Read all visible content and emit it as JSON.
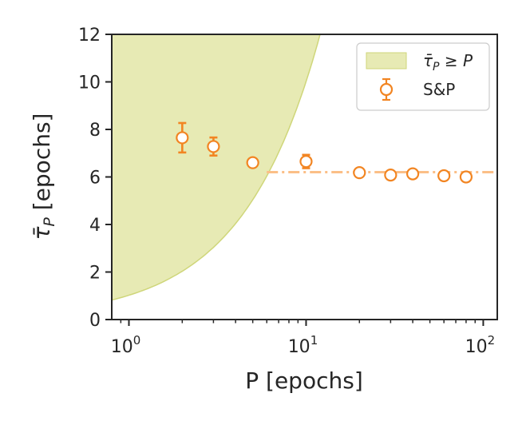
{
  "chart_data": {
    "type": "scatter",
    "title": "",
    "xlabel": "P [epochs]",
    "ylabel_main": "τ̄",
    "ylabel_sub": "P",
    "ylabel_rest": " [epochs]",
    "xscale": "log",
    "xlim": [
      0.8,
      120
    ],
    "ylim": [
      0,
      12
    ],
    "xticks": [
      {
        "value": 1,
        "base": "10",
        "exp": "0"
      },
      {
        "value": 10,
        "base": "10",
        "exp": "1"
      },
      {
        "value": 100,
        "base": "10",
        "exp": "2"
      }
    ],
    "yticks": [
      {
        "value": 0,
        "label": "0"
      },
      {
        "value": 2,
        "label": "2"
      },
      {
        "value": 4,
        "label": "4"
      },
      {
        "value": 6,
        "label": "6"
      },
      {
        "value": 8,
        "label": "8"
      },
      {
        "value": 10,
        "label": "10"
      },
      {
        "value": 12,
        "label": "12"
      }
    ],
    "grid": false,
    "legend": {
      "placement": "top-right",
      "entries": [
        {
          "kind": "region",
          "main": "τ̄",
          "sub": "P",
          "rest": " ≥ ",
          "italic": "P"
        },
        {
          "kind": "marker",
          "label": "S&P"
        }
      ]
    },
    "series": [
      {
        "name": "S&P",
        "points": [
          {
            "x": 2,
            "y": 7.65,
            "err": 0.62
          },
          {
            "x": 3,
            "y": 7.28,
            "err": 0.38
          },
          {
            "x": 5,
            "y": 6.6,
            "err": 0
          },
          {
            "x": 10,
            "y": 6.65,
            "err": 0.28
          },
          {
            "x": 20,
            "y": 6.18,
            "err": 0
          },
          {
            "x": 30,
            "y": 6.08,
            "err": 0
          },
          {
            "x": 40,
            "y": 6.13,
            "err": 0
          },
          {
            "x": 60,
            "y": 6.05,
            "err": 0
          },
          {
            "x": 80,
            "y": 6.0,
            "err": 0
          }
        ]
      }
    ],
    "reference_line": {
      "y": 6.2,
      "x_start": 6,
      "style": "dash-dot"
    },
    "colors": {
      "marker": "#f28522",
      "reference_line": "#fbbf87",
      "region_fill": "#e7eab4",
      "region_edge": "#cfd67a",
      "axis": "#262626"
    }
  }
}
